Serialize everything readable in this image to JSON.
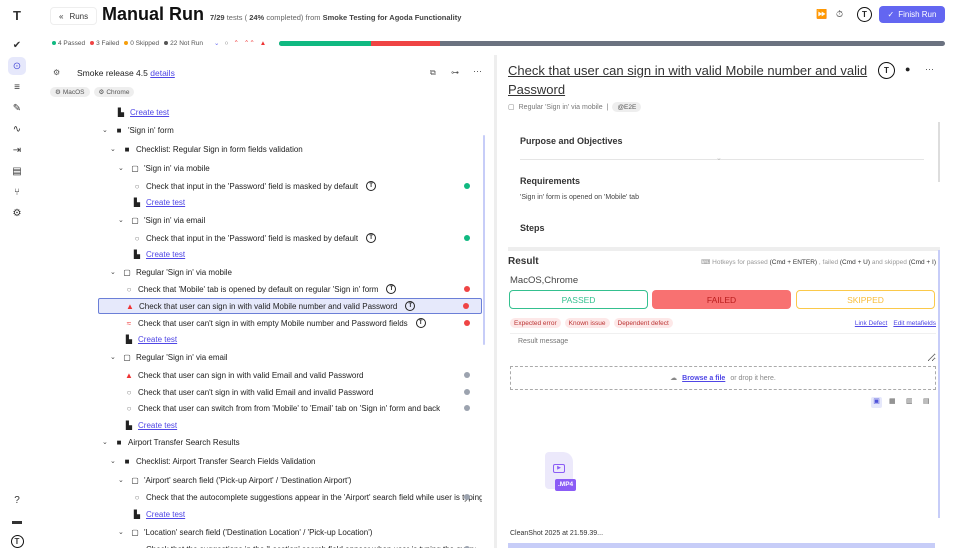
{
  "sidebar": {
    "items": [
      {
        "icon": "logo-icon"
      },
      {
        "icon": "check-icon"
      },
      {
        "icon": "play-circle-icon",
        "active": true
      },
      {
        "icon": "checklist-icon"
      },
      {
        "icon": "pen-icon"
      },
      {
        "icon": "pulse-icon"
      },
      {
        "icon": "import-icon"
      },
      {
        "icon": "chart-icon"
      },
      {
        "icon": "branch-icon"
      },
      {
        "icon": "gear-icon"
      },
      {
        "icon": "help-icon"
      },
      {
        "icon": "folder-icon"
      },
      {
        "icon": "avatar-icon"
      }
    ]
  },
  "header": {
    "back_label": "Runs",
    "title": "Manual Run",
    "progress_count": "7/29",
    "progress_word": "tests (",
    "percent": "24%",
    "completed_from": "completed) from",
    "suite": "Smoke Testing for Agoda Functionality",
    "finish_label": "Finish Run"
  },
  "stats": {
    "passed": "4 Passed",
    "failed": "3 Failed",
    "skipped": "0 Skipped",
    "not_run": "22 Not Run",
    "passed_count": 4,
    "failed_count": 3,
    "skipped_count": 0,
    "not_run_count": 22,
    "total": 29
  },
  "colors": {
    "passed": "#10b981",
    "failed": "#ef4444",
    "skipped": "#f59e0b",
    "not_run": "#6b7280",
    "accent": "#6366f1"
  },
  "release": {
    "name": "Smoke release 4.5",
    "details_label": "details",
    "tags": [
      "MacOS",
      "Chrome"
    ]
  },
  "tree": [
    {
      "kind": "create",
      "depth": 2,
      "label": "Create test"
    },
    {
      "kind": "folder",
      "depth": 1,
      "label": "'Sign in' form"
    },
    {
      "kind": "folder",
      "depth": 2,
      "label": "Checklist: Regular Sign in form fields validation"
    },
    {
      "kind": "suite",
      "depth": 3,
      "label": "'Sign in' via mobile"
    },
    {
      "kind": "test",
      "depth": 4,
      "label": "Check that input in the 'Password' field is masked by default",
      "priority": "normal",
      "status": "passed",
      "avatar": true
    },
    {
      "kind": "create",
      "depth": 4,
      "label": "Create test"
    },
    {
      "kind": "suite",
      "depth": 3,
      "label": "'Sign in' via email"
    },
    {
      "kind": "test",
      "depth": 4,
      "label": "Check that input in the 'Password' field is masked by default",
      "priority": "normal",
      "status": "passed",
      "avatar": true
    },
    {
      "kind": "create",
      "depth": 4,
      "label": "Create test"
    },
    {
      "kind": "suite",
      "depth": 2,
      "label": "Regular 'Sign in' via mobile"
    },
    {
      "kind": "test",
      "depth": 3,
      "label": "Check that 'Mobile' tab is opened by default on regular 'Sign in' form",
      "priority": "normal",
      "status": "failed",
      "avatar": true
    },
    {
      "kind": "test",
      "depth": 3,
      "label": "Check that user can sign in with valid Mobile number and valid Password",
      "priority": "critical",
      "status": "failed",
      "avatar": true,
      "selected": true
    },
    {
      "kind": "test",
      "depth": 3,
      "label": "Check that user can't sign in with empty Mobile number and Password fields",
      "priority": "high",
      "status": "failed",
      "avatar": true
    },
    {
      "kind": "create",
      "depth": 3,
      "label": "Create test"
    },
    {
      "kind": "suite",
      "depth": 2,
      "label": "Regular 'Sign in' via email"
    },
    {
      "kind": "test",
      "depth": 3,
      "label": "Check that user can sign in with valid Email and valid Password",
      "priority": "critical",
      "status": "not_run"
    },
    {
      "kind": "test",
      "depth": 3,
      "label": "Check that user can't sign in with valid Email and invalid Password",
      "priority": "normal",
      "status": "not_run"
    },
    {
      "kind": "test",
      "depth": 3,
      "label": "Check that user can switch from from 'Mobile' to 'Email' tab on 'Sign in' form and back",
      "priority": "normal",
      "status": "not_run"
    },
    {
      "kind": "create",
      "depth": 3,
      "label": "Create test"
    },
    {
      "kind": "folder",
      "depth": 1,
      "label": "Airport Transfer Search Results"
    },
    {
      "kind": "folder",
      "depth": 2,
      "label": "Checklist: Airport Transfer Search Fields Validation"
    },
    {
      "kind": "suite",
      "depth": 3,
      "label": "'Airport' search field ('Pick-up Airport' / 'Destination Airport')"
    },
    {
      "kind": "test",
      "depth": 4,
      "label": "Check that the autocomplete suggestions appear in the 'Airport' search field while user is typing",
      "priority": "normal",
      "status": "not_run"
    },
    {
      "kind": "create",
      "depth": 4,
      "label": "Create test"
    },
    {
      "kind": "suite",
      "depth": 3,
      "label": "'Location' search field ('Destination Location' / 'Pick-up Location')"
    },
    {
      "kind": "test",
      "depth": 4,
      "label": "Check that the suggestions in the 'Location' search field appear when user is typing the query",
      "priority": "normal",
      "status": "not_run"
    }
  ],
  "detail": {
    "title": "Check that user can sign in with valid Mobile number and valid Password",
    "suite": "Regular 'Sign in' via mobile",
    "tag": "@E2E",
    "sections": {
      "purpose": "Purpose and Objectives",
      "requirements": "Requirements",
      "requirements_text": "'Sign in' form is opened on 'Mobile' tab",
      "steps": "Steps"
    },
    "result": {
      "title": "Result",
      "hotkeys_prefix": "Hotkeys for passed",
      "hk_passed": "(Cmd + ENTER)",
      "hotkeys_mid1": ", failed",
      "hk_failed": "(Cmd + U)",
      "hotkeys_mid2": "and skipped",
      "hk_skipped": "(Cmd + I)",
      "environment": "MacOS,Chrome",
      "passed": "PASSED",
      "failed": "FAILED",
      "skipped": "SKIPPED",
      "selected": "failed",
      "tags": [
        "Expected error",
        "Known issue",
        "Dependent defect"
      ],
      "link_defect": "Link Defect",
      "edit_metafields": "Edit metafields",
      "message_placeholder": "Result message",
      "browse": "Browse a file",
      "drop": "or drop it here.",
      "file_ext": ".MP4",
      "file_name": "CleanShot 2025 at 21.59.39..."
    }
  }
}
